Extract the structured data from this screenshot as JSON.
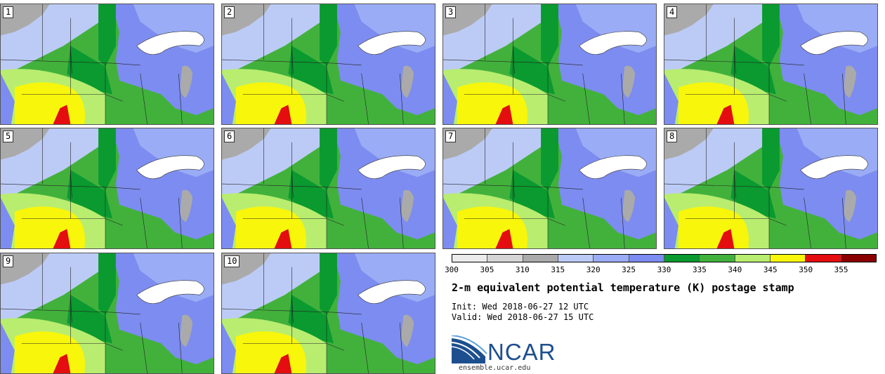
{
  "panels": [
    "1",
    "2",
    "3",
    "4",
    "5",
    "6",
    "7",
    "8",
    "9",
    "10"
  ],
  "colorbar": {
    "ticks": [
      "300",
      "305",
      "310",
      "315",
      "320",
      "325",
      "330",
      "335",
      "340",
      "345",
      "350",
      "355"
    ],
    "colors": [
      "#ececec",
      "#d5d5d5",
      "#aaaaaa",
      "#bccbf6",
      "#9aacf5",
      "#7d8cf0",
      "#0a9a2f",
      "#42b13c",
      "#b8ed70",
      "#f8f60b",
      "#e40d10",
      "#8a0000"
    ]
  },
  "title": "2-m equivalent potential temperature (K) postage stamp",
  "init_text": "Init: Wed 2018-06-27 12 UTC",
  "valid_text": "Valid: Wed 2018-06-27 15 UTC",
  "logo": {
    "name": "NCAR",
    "url": "ensemble.ucar.edu"
  }
}
